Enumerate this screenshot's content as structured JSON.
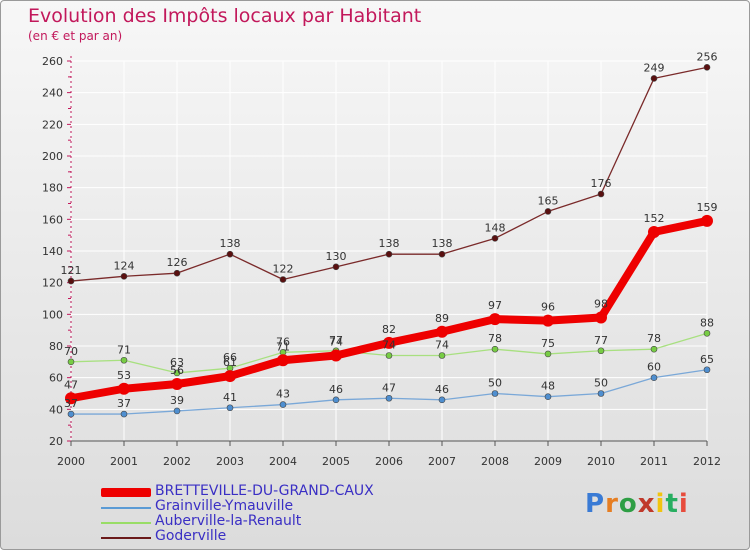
{
  "header": {
    "title": "Evolution des Impôts locaux par Habitant",
    "subtitle": "(en € et par an)"
  },
  "chart_data": {
    "type": "line",
    "title": "Evolution des Impôts locaux par Habitant",
    "subtitle": "(en € et par an)",
    "xlabel": "",
    "ylabel": "",
    "ylim": [
      20,
      260
    ],
    "yticks": [
      20,
      40,
      60,
      80,
      100,
      120,
      140,
      160,
      180,
      200,
      220,
      240,
      260
    ],
    "grid": true,
    "categories": [
      "2000",
      "2001",
      "2002",
      "2003",
      "2004",
      "2005",
      "2006",
      "2007",
      "2008",
      "2009",
      "2010",
      "2011",
      "2012"
    ],
    "series": [
      {
        "name": "BRETTEVILLE-DU-GRAND-CAUX",
        "color": "#ee0000",
        "values": [
          47,
          53,
          56,
          61,
          71,
          74,
          82,
          89,
          97,
          96,
          98,
          152,
          159
        ]
      },
      {
        "name": "Grainville-Ymauville",
        "color": "#5b9bd5",
        "values": [
          37,
          37,
          39,
          41,
          43,
          46,
          47,
          46,
          50,
          48,
          50,
          60,
          65
        ]
      },
      {
        "name": "Auberville-la-Renault",
        "color": "#99dd66",
        "values": [
          70,
          71,
          63,
          66,
          76,
          77,
          74,
          74,
          78,
          75,
          77,
          78,
          88
        ]
      },
      {
        "name": "Goderville",
        "color": "#6b1a1a",
        "values": [
          121,
          124,
          126,
          138,
          122,
          130,
          138,
          138,
          148,
          165,
          176,
          249,
          256
        ]
      }
    ]
  },
  "logo": {
    "text": "Proxiti"
  }
}
